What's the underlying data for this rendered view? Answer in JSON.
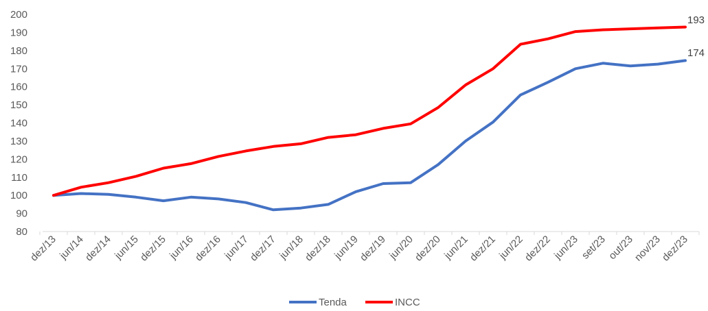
{
  "chart_data": {
    "type": "line",
    "categories": [
      "dez/13",
      "jun/14",
      "dez/14",
      "jun/15",
      "dez/15",
      "jun/16",
      "dez/16",
      "jun/17",
      "dez/17",
      "jun/18",
      "dez/18",
      "jun/19",
      "dez/19",
      "jun/20",
      "dez/20",
      "jun/21",
      "dez/21",
      "jun/22",
      "dez/22",
      "jun/23",
      "set/23",
      "out/23",
      "nov/23",
      "dez/23"
    ],
    "series": [
      {
        "name": "Tenda",
        "color": "#4472C4",
        "values": [
          100,
          101,
          100.5,
          99,
          97,
          99,
          98,
          96,
          92,
          93,
          95,
          102,
          106.5,
          107,
          117,
          130,
          140.5,
          155.5,
          162.5,
          170,
          173,
          171.5,
          172.5,
          174.5
        ]
      },
      {
        "name": "INCC",
        "color": "#FF0000",
        "values": [
          100,
          104.5,
          107,
          110.5,
          115,
          117.5,
          121.5,
          124.5,
          127,
          128.5,
          132,
          133.5,
          137,
          139.5,
          148.5,
          161,
          170,
          183.5,
          186.5,
          190.5,
          191.5,
          192,
          192.5,
          193
        ]
      }
    ],
    "end_labels": {
      "Tenda": "174",
      "INCC": "193"
    },
    "title": "",
    "xlabel": "",
    "ylabel": "",
    "ylim": [
      80,
      200
    ],
    "yticks": [
      80,
      90,
      100,
      110,
      120,
      130,
      140,
      150,
      160,
      170,
      180,
      190,
      200
    ],
    "grid": false,
    "legend": "bottom-center"
  }
}
